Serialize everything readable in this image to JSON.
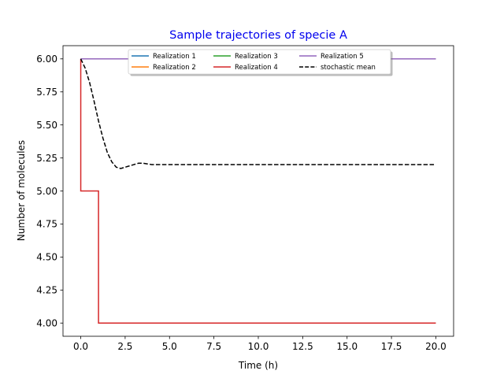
{
  "chart_data": {
    "type": "line",
    "title": "Sample trajectories of specie A",
    "title_color": "#0000ee",
    "xlabel": "Time (h)",
    "ylabel": "Number of molecules",
    "xlim": [
      -1,
      21
    ],
    "ylim": [
      3.9,
      6.1
    ],
    "xticks": [
      0.0,
      2.5,
      5.0,
      7.5,
      10.0,
      12.5,
      15.0,
      17.5,
      20.0
    ],
    "xtick_labels": [
      "0.0",
      "2.5",
      "5.0",
      "7.5",
      "10.0",
      "12.5",
      "15.0",
      "17.5",
      "20.0"
    ],
    "yticks": [
      4.0,
      4.25,
      4.5,
      4.75,
      5.0,
      5.25,
      5.5,
      5.75,
      6.0
    ],
    "ytick_labels": [
      "4.00",
      "4.25",
      "4.50",
      "4.75",
      "5.00",
      "5.25",
      "5.50",
      "5.75",
      "6.00"
    ],
    "grid": false,
    "legend_position": "top-center",
    "legend_columns": 3,
    "series": [
      {
        "name": "Realization 1",
        "color": "#1f77b4",
        "style": "solid",
        "step": true,
        "x": [
          0,
          20
        ],
        "y": [
          6,
          6
        ]
      },
      {
        "name": "Realization 2",
        "color": "#ff7f0e",
        "style": "solid",
        "step": true,
        "x": [
          0,
          20
        ],
        "y": [
          6,
          6
        ]
      },
      {
        "name": "Realization 3",
        "color": "#2ca02c",
        "style": "solid",
        "step": true,
        "x": [
          0,
          20
        ],
        "y": [
          6,
          6
        ]
      },
      {
        "name": "Realization 4",
        "color": "#d62728",
        "style": "solid",
        "step": true,
        "x": [
          0,
          0,
          1,
          1,
          20
        ],
        "y": [
          6,
          5,
          5,
          4,
          4
        ]
      },
      {
        "name": "Realization 5",
        "color": "#9467bd",
        "style": "solid",
        "step": true,
        "x": [
          0,
          20
        ],
        "y": [
          6,
          6
        ]
      },
      {
        "name": "stochastic mean",
        "color": "#000000",
        "style": "dashed",
        "step": false,
        "x": [
          0,
          0.25,
          0.5,
          0.75,
          1.0,
          1.25,
          1.5,
          1.75,
          2.0,
          2.25,
          2.5,
          2.75,
          3.0,
          3.25,
          3.5,
          3.75,
          4.0,
          4.5,
          5.0,
          6.0,
          8.0,
          10.0,
          12.0,
          14.0,
          16.0,
          18.0,
          20.0
        ],
        "y": [
          6.0,
          5.93,
          5.82,
          5.68,
          5.53,
          5.4,
          5.29,
          5.22,
          5.18,
          5.17,
          5.18,
          5.19,
          5.2,
          5.21,
          5.21,
          5.205,
          5.2,
          5.2,
          5.2,
          5.2,
          5.2,
          5.2,
          5.2,
          5.2,
          5.2,
          5.2,
          5.2
        ]
      }
    ]
  }
}
